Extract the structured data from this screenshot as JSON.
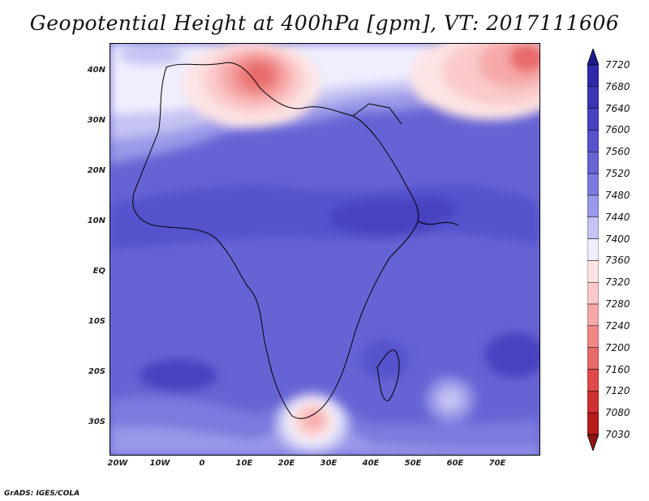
{
  "title": "Geopotential Height at 400hPa [gpm], VT: 2017111606",
  "credit": "GrADS: IGES/COLA",
  "map": {
    "lat_labels": [
      "40N",
      "30N",
      "20N",
      "10N",
      "EQ",
      "10S",
      "20S",
      "30S"
    ],
    "lon_labels": [
      "20W",
      "10W",
      "0",
      "10E",
      "20E",
      "30E",
      "40E",
      "50E",
      "60E",
      "70E"
    ]
  },
  "colorbar": {
    "levels": [
      "7720",
      "7680",
      "7640",
      "7600",
      "7560",
      "7520",
      "7480",
      "7440",
      "7400",
      "7360",
      "7320",
      "7280",
      "7240",
      "7200",
      "7160",
      "7120",
      "7080",
      "7030"
    ],
    "colors": [
      "#1e1a8c",
      "#2c2aa6",
      "#3836b4",
      "#4642c0",
      "#5552cc",
      "#6664d4",
      "#7c7ade",
      "#9a98e8",
      "#c4c3f3",
      "#eeeefe",
      "#fde4e4",
      "#fbc9c9",
      "#f6a8a8",
      "#f08888",
      "#e86a6a",
      "#de4a4a",
      "#cf3030",
      "#b51c1c",
      "#8f1414"
    ]
  }
}
